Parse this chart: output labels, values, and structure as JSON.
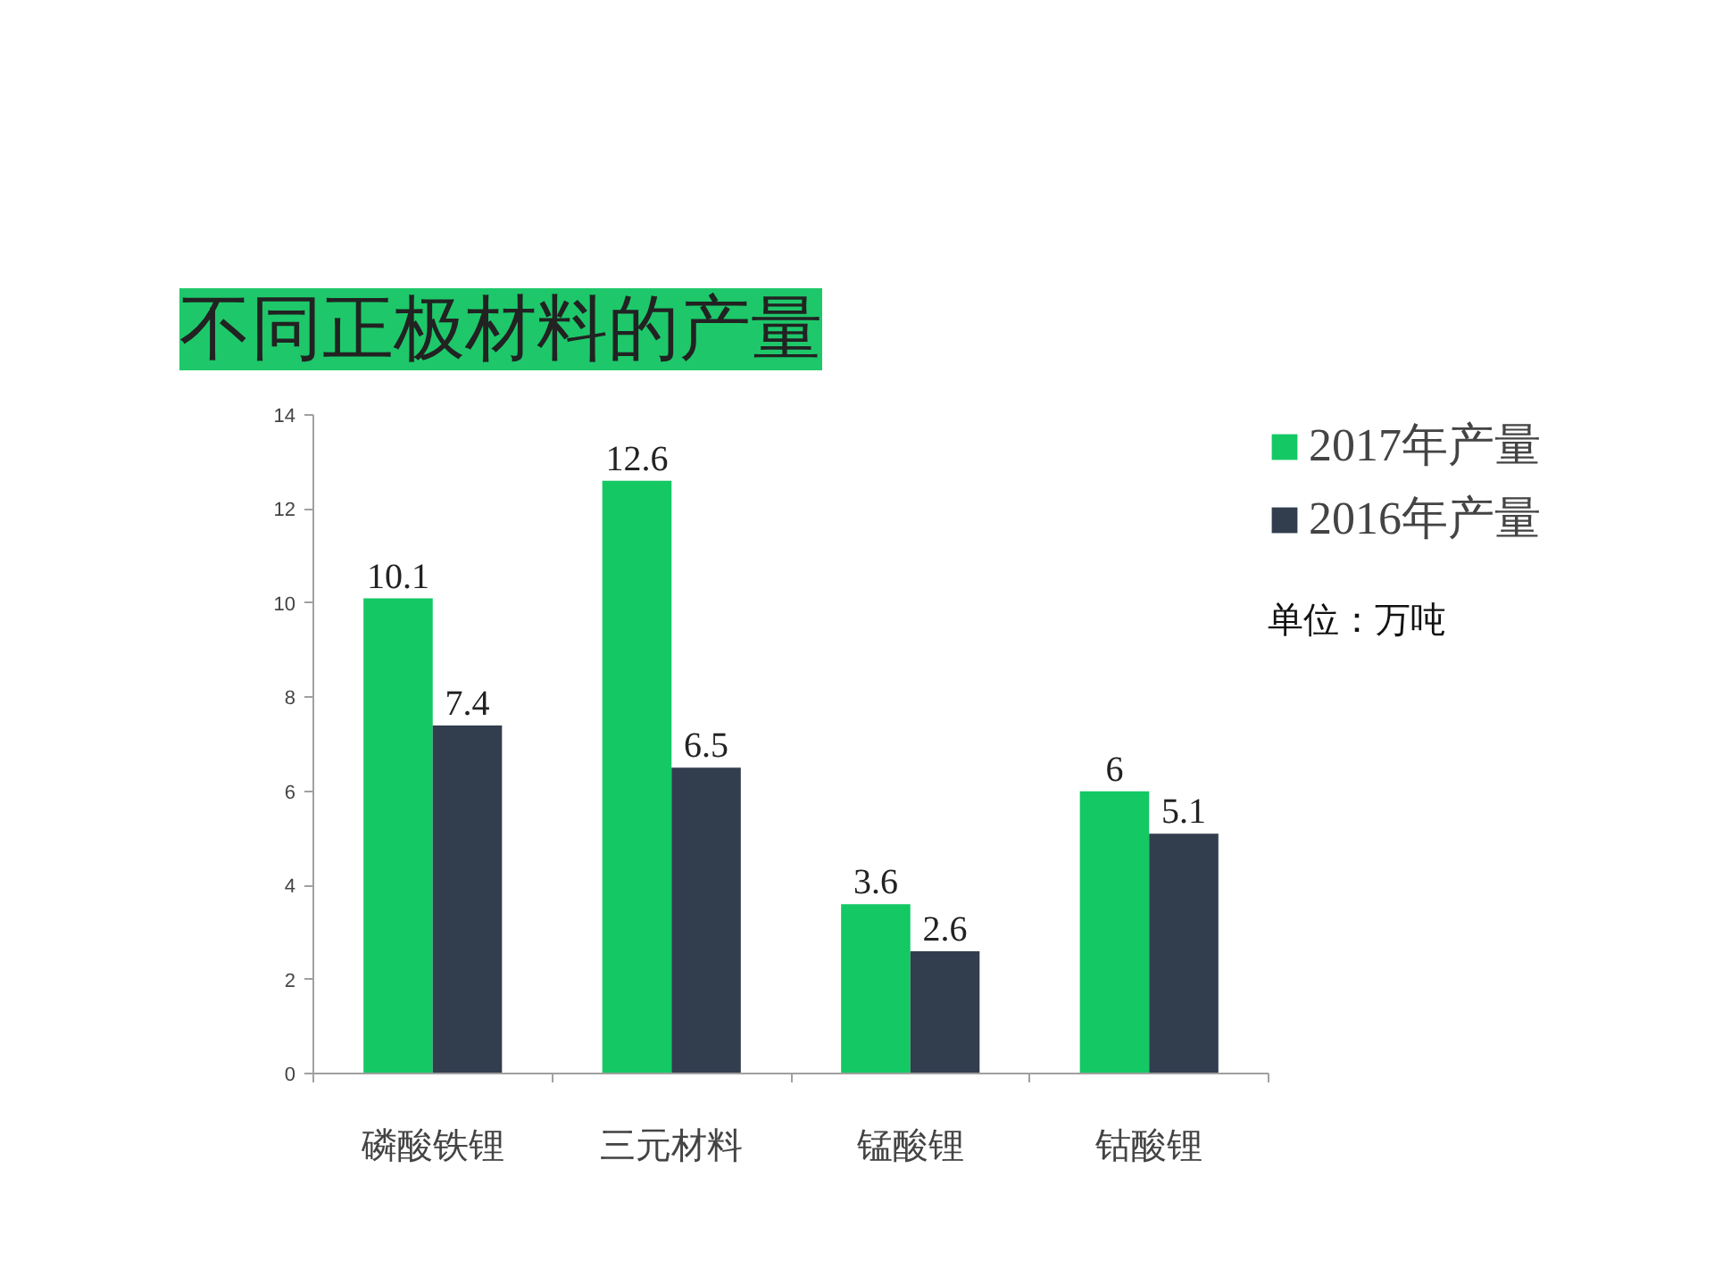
{
  "chart_data": {
    "type": "bar",
    "title": "不同正极材料的产量",
    "categories": [
      "磷酸铁锂",
      "三元材料",
      "锰酸锂",
      "钴酸锂"
    ],
    "series": [
      {
        "name": "2017年产量",
        "color": "#14c864",
        "values": [
          10.1,
          12.6,
          3.6,
          6
        ]
      },
      {
        "name": "2016年产量",
        "color": "#323e4e",
        "values": [
          7.4,
          6.5,
          2.6,
          5.1
        ]
      }
    ],
    "ylim": [
      0,
      14
    ],
    "yticks": [
      0,
      2,
      4,
      6,
      8,
      10,
      12,
      14
    ],
    "grid": false,
    "legend": "right",
    "data_labels": true,
    "annotations": [
      "单位：万吨"
    ]
  }
}
